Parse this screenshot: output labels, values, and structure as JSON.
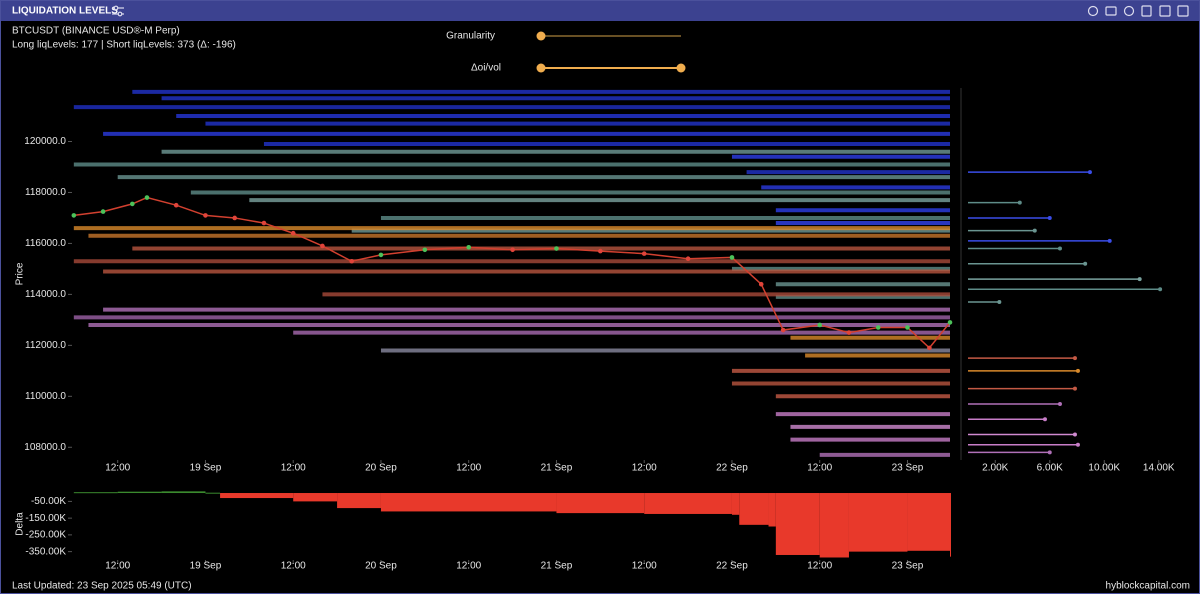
{
  "header": {
    "title": "LIQUIDATION LEVELS",
    "symbol": "BTCUSDT (BINANCE USD®-M Perp)",
    "summary": "Long liqLevels: 177 | Short liqLevels: 373 (Δ: -196)"
  },
  "controls": {
    "granularity": "Granularity",
    "oi_vol": "Δoi/vol"
  },
  "footer": {
    "updated": "Last Updated: 23 Sep 2025 05:49 (UTC)",
    "brand": "hyblockcapital.com"
  },
  "chart_data": [
    {
      "type": "line",
      "y_label": "Price",
      "color": "#d2402f",
      "up_color": "#4cc25a",
      "down_color": "#e0443a",
      "xlim": [
        "18 Sep 05:45",
        "23 Sep 05:49"
      ],
      "ylim": [
        107500,
        122100
      ],
      "yticks": [
        {
          "value": 108000,
          "label": "108000.0"
        },
        {
          "value": 110000,
          "label": "110000.0"
        },
        {
          "value": 112000,
          "label": "112000.0"
        },
        {
          "value": 114000,
          "label": "114000.0"
        },
        {
          "value": 116000,
          "label": "116000.0"
        },
        {
          "value": 118000,
          "label": "118000.0"
        },
        {
          "value": 120000,
          "label": "120000.0"
        }
      ],
      "xticks": [
        {
          "value": "18 Sep 12:00",
          "label": "12:00"
        },
        {
          "value": "19 Sep 00:00",
          "label": "19 Sep"
        },
        {
          "value": "19 Sep 12:00",
          "label": "12:00"
        },
        {
          "value": "20 Sep 00:00",
          "label": "20 Sep"
        },
        {
          "value": "20 Sep 12:00",
          "label": "12:00"
        },
        {
          "value": "21 Sep 00:00",
          "label": "21 Sep"
        },
        {
          "value": "21 Sep 12:00",
          "label": "12:00"
        },
        {
          "value": "22 Sep 00:00",
          "label": "22 Sep"
        },
        {
          "value": "22 Sep 12:00",
          "label": "12:00"
        },
        {
          "value": "23 Sep 00:00",
          "label": "23 Sep"
        }
      ],
      "x": [
        "18 Sep 06:00",
        "18 Sep 10:00",
        "18 Sep 14:00",
        "18 Sep 16:00",
        "18 Sep 20:00",
        "19 Sep 00:00",
        "19 Sep 04:00",
        "19 Sep 08:00",
        "19 Sep 12:00",
        "19 Sep 16:00",
        "19 Sep 20:00",
        "20 Sep 00:00",
        "20 Sep 06:00",
        "20 Sep 12:00",
        "20 Sep 18:00",
        "21 Sep 00:00",
        "21 Sep 06:00",
        "21 Sep 12:00",
        "21 Sep 18:00",
        "22 Sep 00:00",
        "22 Sep 04:00",
        "22 Sep 07:00",
        "22 Sep 12:00",
        "22 Sep 16:00",
        "22 Sep 20:00",
        "23 Sep 00:00",
        "23 Sep 03:00",
        "23 Sep 05:49"
      ],
      "values": [
        117100,
        117250,
        117550,
        117800,
        117500,
        117100,
        117000,
        116800,
        116400,
        115900,
        115300,
        115550,
        115750,
        115850,
        115750,
        115800,
        115700,
        115600,
        115400,
        115450,
        114400,
        112600,
        112800,
        112500,
        112700,
        112700,
        111900,
        112900
      ],
      "levels": {
        "price": [
          121950,
          121700,
          121350,
          121000,
          120700,
          120300,
          119900,
          119400,
          118800,
          118200,
          117300,
          116800,
          119600,
          119100,
          118600,
          118000,
          117700,
          117000,
          116500,
          115000,
          114400,
          113900,
          116600,
          116300,
          115800,
          115300,
          114900,
          114000,
          113400,
          113100,
          112800,
          112500,
          111800,
          112300,
          111600,
          111000,
          110500,
          110000,
          109300,
          108800,
          108300,
          107700
        ],
        "start": [
          "18 Sep 14:00",
          "18 Sep 18:00",
          "18 Sep 06:00",
          "18 Sep 20:00",
          "19 Sep 00:00",
          "18 Sep 10:00",
          "19 Sep 08:00",
          "22 Sep 00:00",
          "22 Sep 02:00",
          "22 Sep 04:00",
          "22 Sep 06:00",
          "22 Sep 06:00",
          "18 Sep 18:00",
          "18 Sep 06:00",
          "18 Sep 12:00",
          "18 Sep 22:00",
          "19 Sep 06:00",
          "20 Sep 00:00",
          "19 Sep 20:00",
          "22 Sep 00:00",
          "22 Sep 06:00",
          "22 Sep 06:00",
          "18 Sep 06:00",
          "18 Sep 08:00",
          "18 Sep 14:00",
          "18 Sep 06:00",
          "18 Sep 10:00",
          "19 Sep 16:00",
          "18 Sep 10:00",
          "18 Sep 06:00",
          "18 Sep 08:00",
          "19 Sep 12:00",
          "20 Sep 00:00",
          "22 Sep 08:00",
          "22 Sep 10:00",
          "22 Sep 00:00",
          "22 Sep 00:00",
          "22 Sep 06:00",
          "22 Sep 06:00",
          "22 Sep 08:00",
          "22 Sep 08:00",
          "22 Sep 12:00"
        ],
        "color": [
          "#2233cc",
          "#2233cc",
          "#1f2fc4",
          "#2536d8",
          "#2233cc",
          "#2a3be0",
          "#2233cc",
          "#2d3ee8",
          "#2233cc",
          "#2a3be0",
          "#2d3ee8",
          "#3344ee",
          "#6f9a96",
          "#5e8c88",
          "#6a9591",
          "#5e8c88",
          "#7aa39f",
          "#5e8c88",
          "#6f9a96",
          "#5e8c88",
          "#6a9591",
          "#5e8c88",
          "#d98a2b",
          "#c7762a",
          "#b8553f",
          "#a84a3a",
          "#b8553f",
          "#a84a3a",
          "#b070b8",
          "#9c62a6",
          "#b070b8",
          "#a86ab0",
          "#8a8aa0",
          "#d98a2b",
          "#d98a2b",
          "#c45a45",
          "#b8553f",
          "#c45a45",
          "#c77dc7",
          "#d08ad0",
          "#c77dc7",
          "#b070b8"
        ]
      }
    },
    {
      "type": "hbar",
      "xlim": [
        0,
        16000
      ],
      "ylim": [
        107500,
        122100
      ],
      "xticks": [
        {
          "value": 2000,
          "label": "2.00K"
        },
        {
          "value": 6000,
          "label": "6.00K"
        },
        {
          "value": 10000,
          "label": "10.00K"
        },
        {
          "value": 14000,
          "label": "14.00K"
        }
      ],
      "y": [
        118800,
        117600,
        117000,
        116500,
        116100,
        115800,
        115200,
        114600,
        114200,
        113700,
        111500,
        111000,
        110300,
        109700,
        109100,
        108500,
        108100,
        107800
      ],
      "values": [
        8950,
        3800,
        6000,
        4900,
        10400,
        6750,
        8600,
        12600,
        14100,
        2300,
        7850,
        8070,
        7850,
        6750,
        5650,
        7850,
        8070,
        6000
      ],
      "colors": [
        "#3a4de8",
        "#5e8c88",
        "#3a4de8",
        "#6a9591",
        "#3a4de8",
        "#5e8c88",
        "#6a9591",
        "#7aa39f",
        "#5e8c88",
        "#6a9591",
        "#c45a45",
        "#d98a2b",
        "#c45a45",
        "#b070b8",
        "#c77dc7",
        "#d08ad0",
        "#c77dc7",
        "#b070b8"
      ]
    },
    {
      "type": "area",
      "y_label": "Delta",
      "pos_color": "#3b8a2e",
      "neg_color": "#e8392b",
      "xlim": [
        "18 Sep 05:45",
        "23 Sep 05:49"
      ],
      "ylim": [
        -400000,
        30000
      ],
      "yticks": [
        {
          "value": -350000,
          "label": "-350.00K"
        },
        {
          "value": -250000,
          "label": "-250.00K"
        },
        {
          "value": -150000,
          "label": "-150.00K"
        },
        {
          "value": -50000,
          "label": "-50.00K"
        }
      ],
      "xticks": [
        {
          "value": "18 Sep 12:00",
          "label": "12:00"
        },
        {
          "value": "19 Sep 00:00",
          "label": "19 Sep"
        },
        {
          "value": "19 Sep 12:00",
          "label": "12:00"
        },
        {
          "value": "20 Sep 00:00",
          "label": "20 Sep"
        },
        {
          "value": "20 Sep 12:00",
          "label": "12:00"
        },
        {
          "value": "21 Sep 00:00",
          "label": "21 Sep"
        },
        {
          "value": "21 Sep 12:00",
          "label": "12:00"
        },
        {
          "value": "22 Sep 00:00",
          "label": "22 Sep"
        },
        {
          "value": "22 Sep 12:00",
          "label": "12:00"
        },
        {
          "value": "23 Sep 00:00",
          "label": "23 Sep"
        }
      ],
      "x": [
        "18 Sep 06:00",
        "18 Sep 12:00",
        "18 Sep 18:00",
        "19 Sep 00:00",
        "19 Sep 02:00",
        "19 Sep 12:00",
        "19 Sep 18:00",
        "20 Sep 00:00",
        "21 Sep 00:00",
        "21 Sep 12:00",
        "22 Sep 00:00",
        "22 Sep 01:00",
        "22 Sep 05:00",
        "22 Sep 06:00",
        "22 Sep 12:00",
        "22 Sep 16:00",
        "23 Sep 00:00",
        "23 Sep 05:49"
      ],
      "values": [
        5000,
        8000,
        10000,
        2000,
        -30000,
        -50000,
        -90000,
        -110000,
        -120000,
        -125000,
        -130000,
        -190000,
        -200000,
        -370000,
        -385000,
        -350000,
        -345000,
        -380000
      ]
    }
  ]
}
